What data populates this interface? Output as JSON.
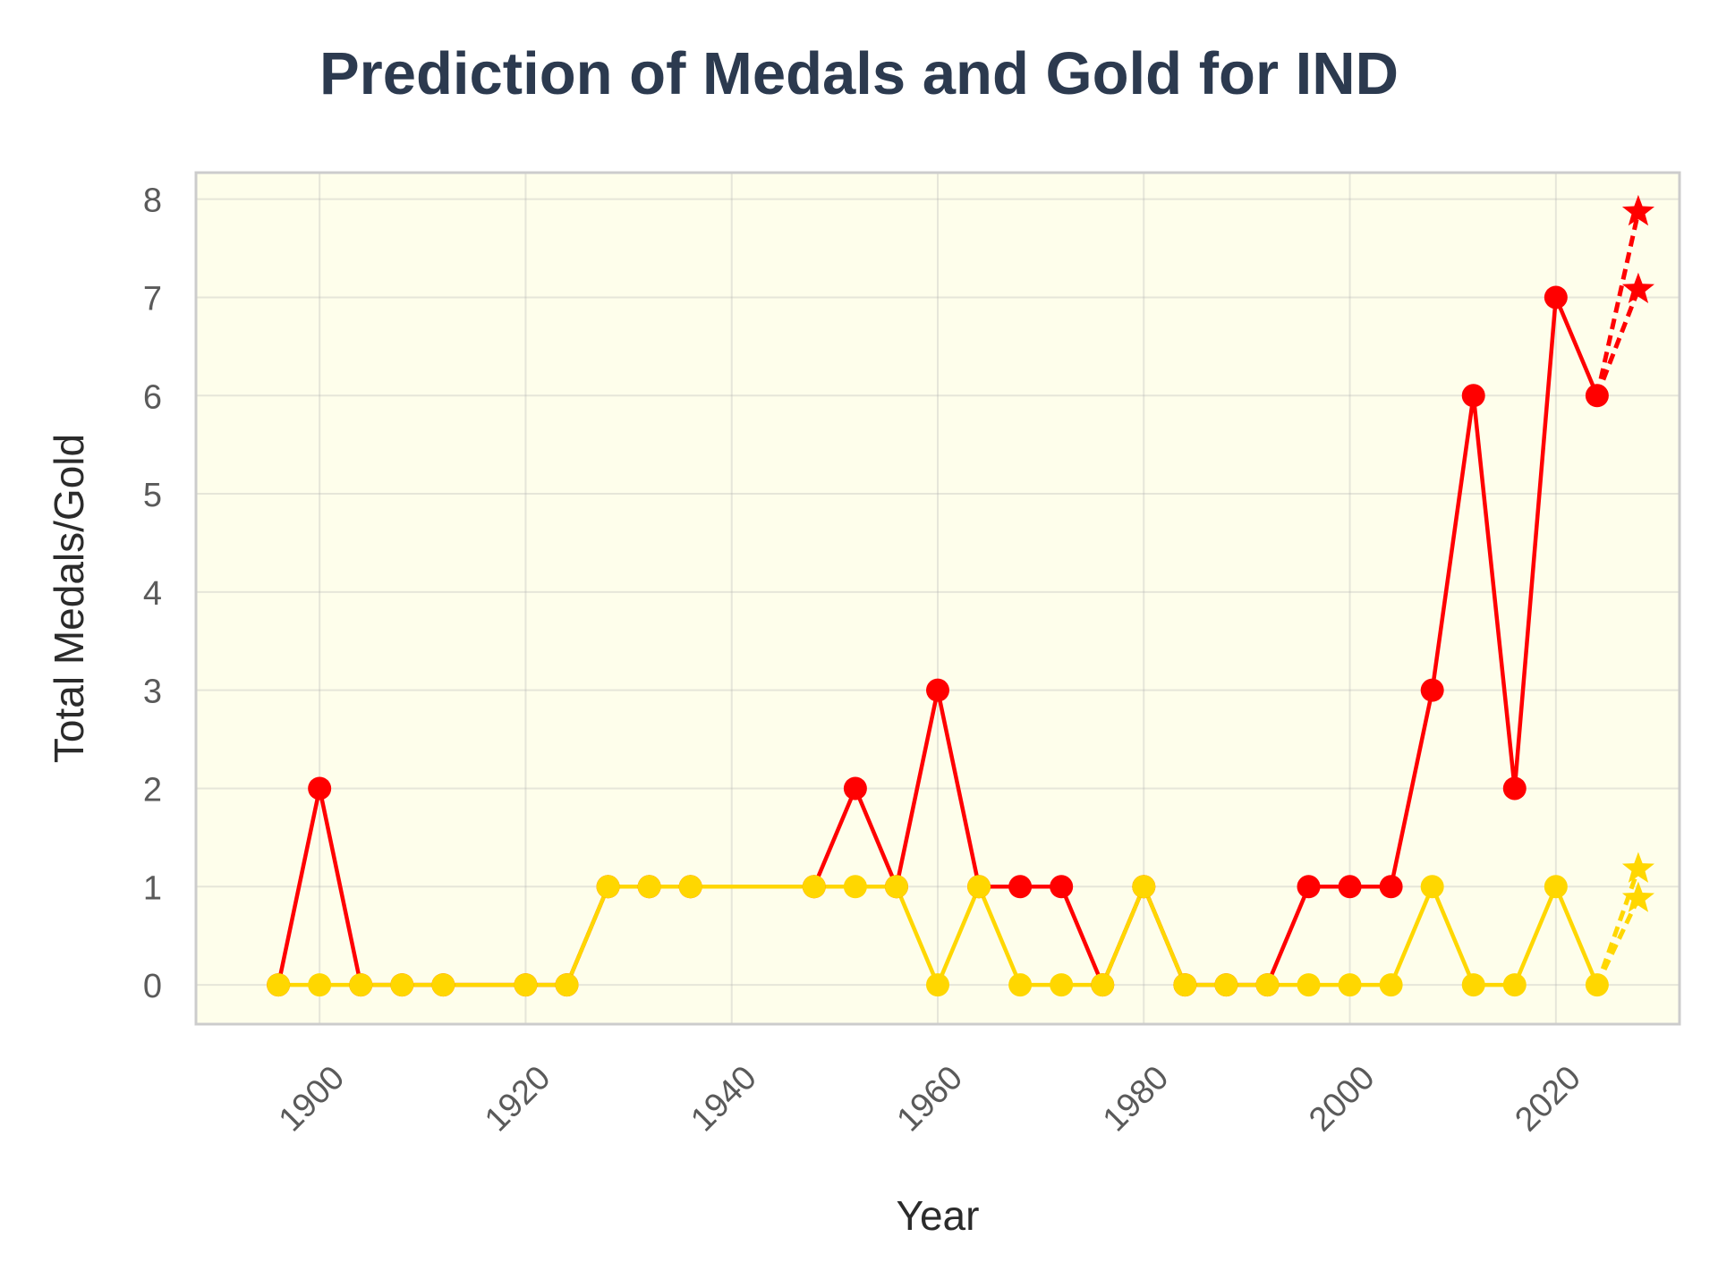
{
  "chart_data": {
    "type": "line",
    "title": "Prediction of Medals and Gold for IND",
    "xlabel": "Year",
    "ylabel": "Total Medals/Gold",
    "xlim": [
      1888,
      2032
    ],
    "ylim": [
      -0.4,
      8.27
    ],
    "x_ticks": [
      1900,
      1920,
      1940,
      1960,
      1980,
      2000,
      2020
    ],
    "y_ticks": [
      0,
      1,
      2,
      3,
      4,
      5,
      6,
      7,
      8
    ],
    "grid": true,
    "legend": "none",
    "plot_background": "#fefeeb",
    "series": [
      {
        "color": "#ff0000",
        "x": [
          1896,
          1900,
          1904,
          1908,
          1912,
          1920,
          1924,
          1928,
          1932,
          1936,
          1948,
          1952,
          1956,
          1960,
          1964,
          1968,
          1972,
          1976,
          1980,
          1984,
          1988,
          1992,
          1996,
          2000,
          2004,
          2008,
          2012,
          2016,
          2020,
          2024
        ],
        "values": [
          0,
          2,
          0,
          0,
          0,
          0,
          0,
          1,
          1,
          1,
          1,
          2,
          1,
          3,
          1,
          1,
          1,
          0,
          1,
          0,
          0,
          0,
          1,
          1,
          1,
          3,
          6,
          2,
          7,
          6
        ]
      },
      {
        "color": "#ffd700",
        "x": [
          1896,
          1900,
          1904,
          1908,
          1912,
          1920,
          1924,
          1928,
          1932,
          1936,
          1948,
          1952,
          1956,
          1960,
          1964,
          1968,
          1972,
          1976,
          1980,
          1984,
          1988,
          1992,
          1996,
          2000,
          2004,
          2008,
          2012,
          2016,
          2020,
          2024
        ],
        "values": [
          0,
          0,
          0,
          0,
          0,
          0,
          0,
          1,
          1,
          1,
          1,
          1,
          1,
          0,
          1,
          0,
          0,
          0,
          1,
          0,
          0,
          0,
          0,
          0,
          0,
          1,
          0,
          0,
          1,
          0
        ]
      }
    ],
    "predictions": [
      {
        "color": "#ff0000",
        "x": 2028,
        "values": [
          7.87,
          7.08
        ]
      },
      {
        "color": "#ffd700",
        "x": 2028,
        "values": [
          1.18,
          0.88
        ]
      }
    ]
  }
}
